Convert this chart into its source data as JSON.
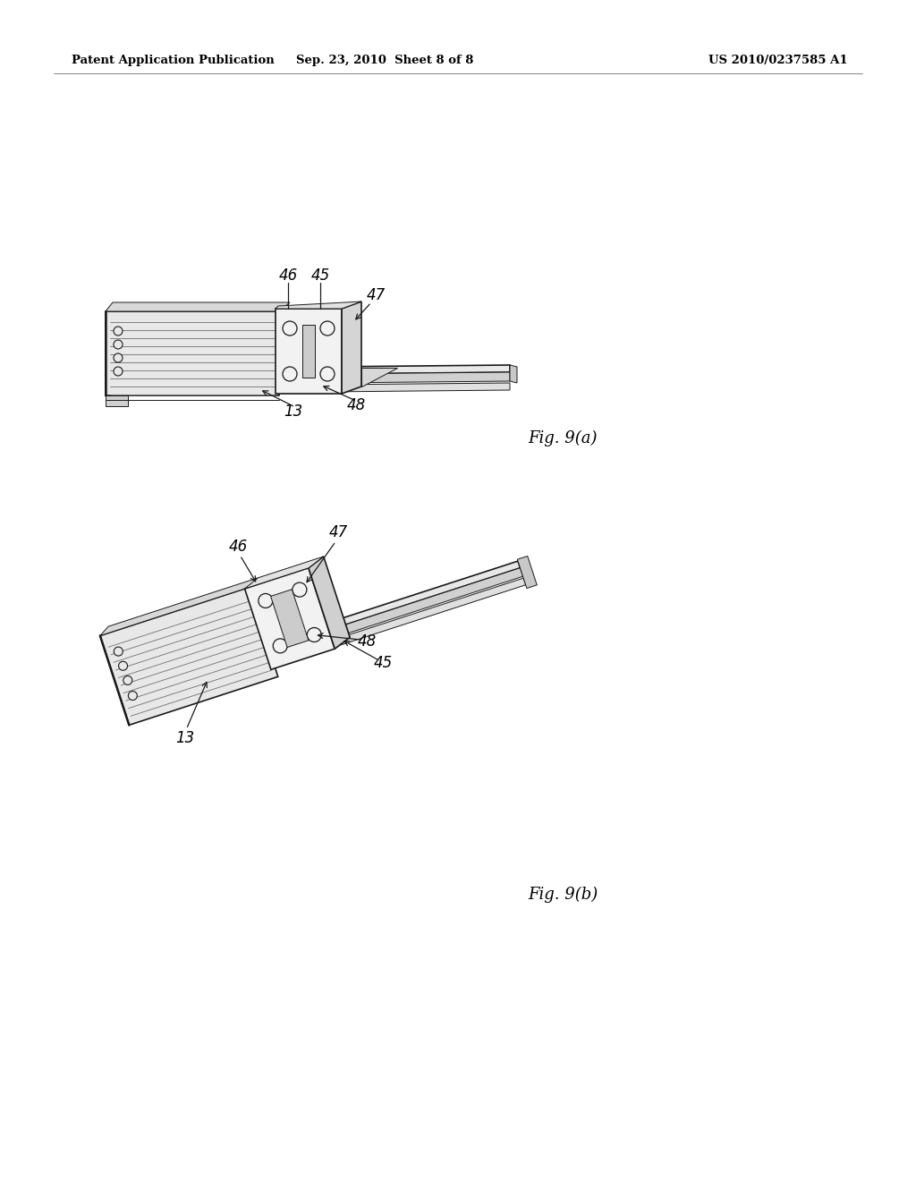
{
  "background_color": "#ffffff",
  "header_left": "Patent Application Publication",
  "header_center": "Sep. 23, 2010  Sheet 8 of 8",
  "header_right": "US 2010/0237585 A1",
  "header_fontsize": 9.5,
  "fig_label_a": "Fig. 9(a)",
  "fig_label_b": "Fig. 9(b)",
  "fig_label_fontsize": 13,
  "line_color": "#1a1a1a",
  "annotation_fontsize": 12
}
